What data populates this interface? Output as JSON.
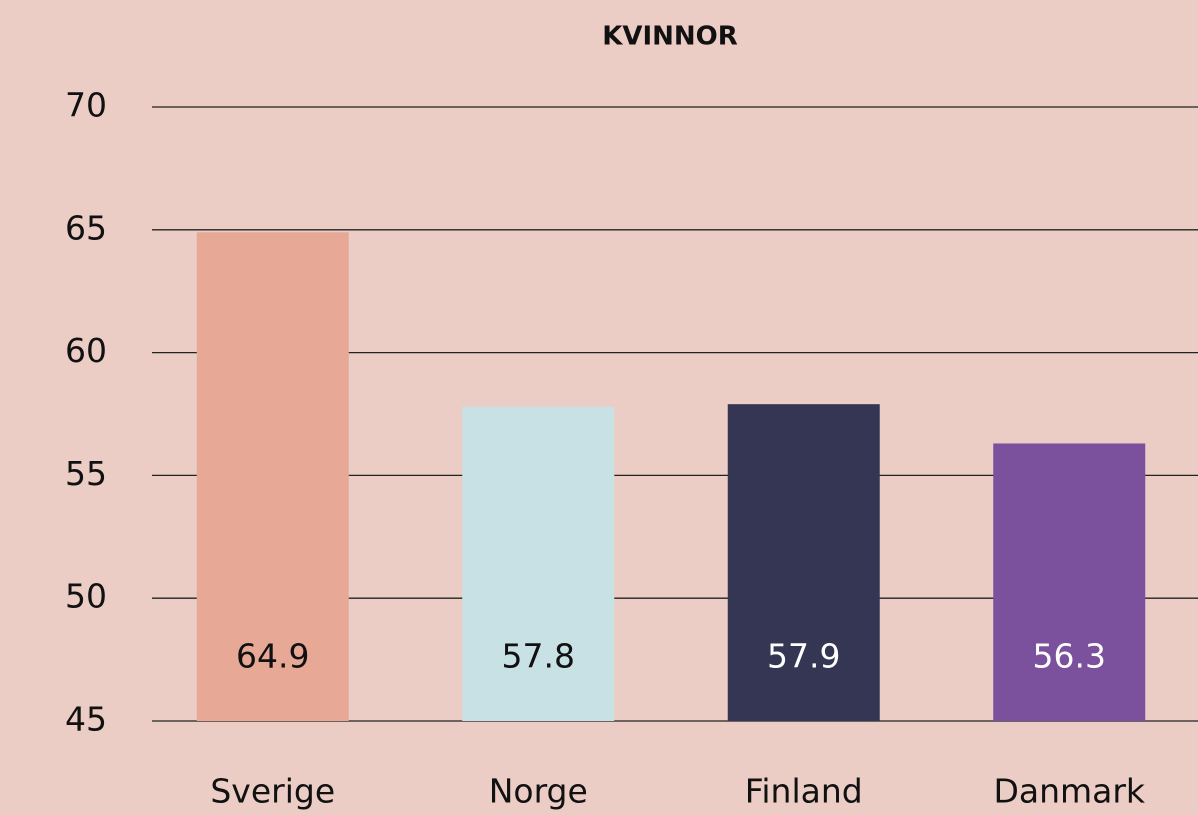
{
  "chart_data": {
    "type": "bar",
    "title": "KVINNOR",
    "categories": [
      "Sverige",
      "Norge",
      "Finland",
      "Danmark"
    ],
    "values": [
      64.9,
      57.8,
      57.9,
      56.3
    ],
    "colors": [
      "#e7a996",
      "#c7e1e5",
      "#343654",
      "#7b509d"
    ],
    "label_colors": [
      "#111111",
      "#111111",
      "#ffffff",
      "#ffffff"
    ],
    "ylim": [
      45,
      70
    ],
    "yticks": [
      45,
      50,
      55,
      60,
      65,
      70
    ],
    "grid": true
  }
}
